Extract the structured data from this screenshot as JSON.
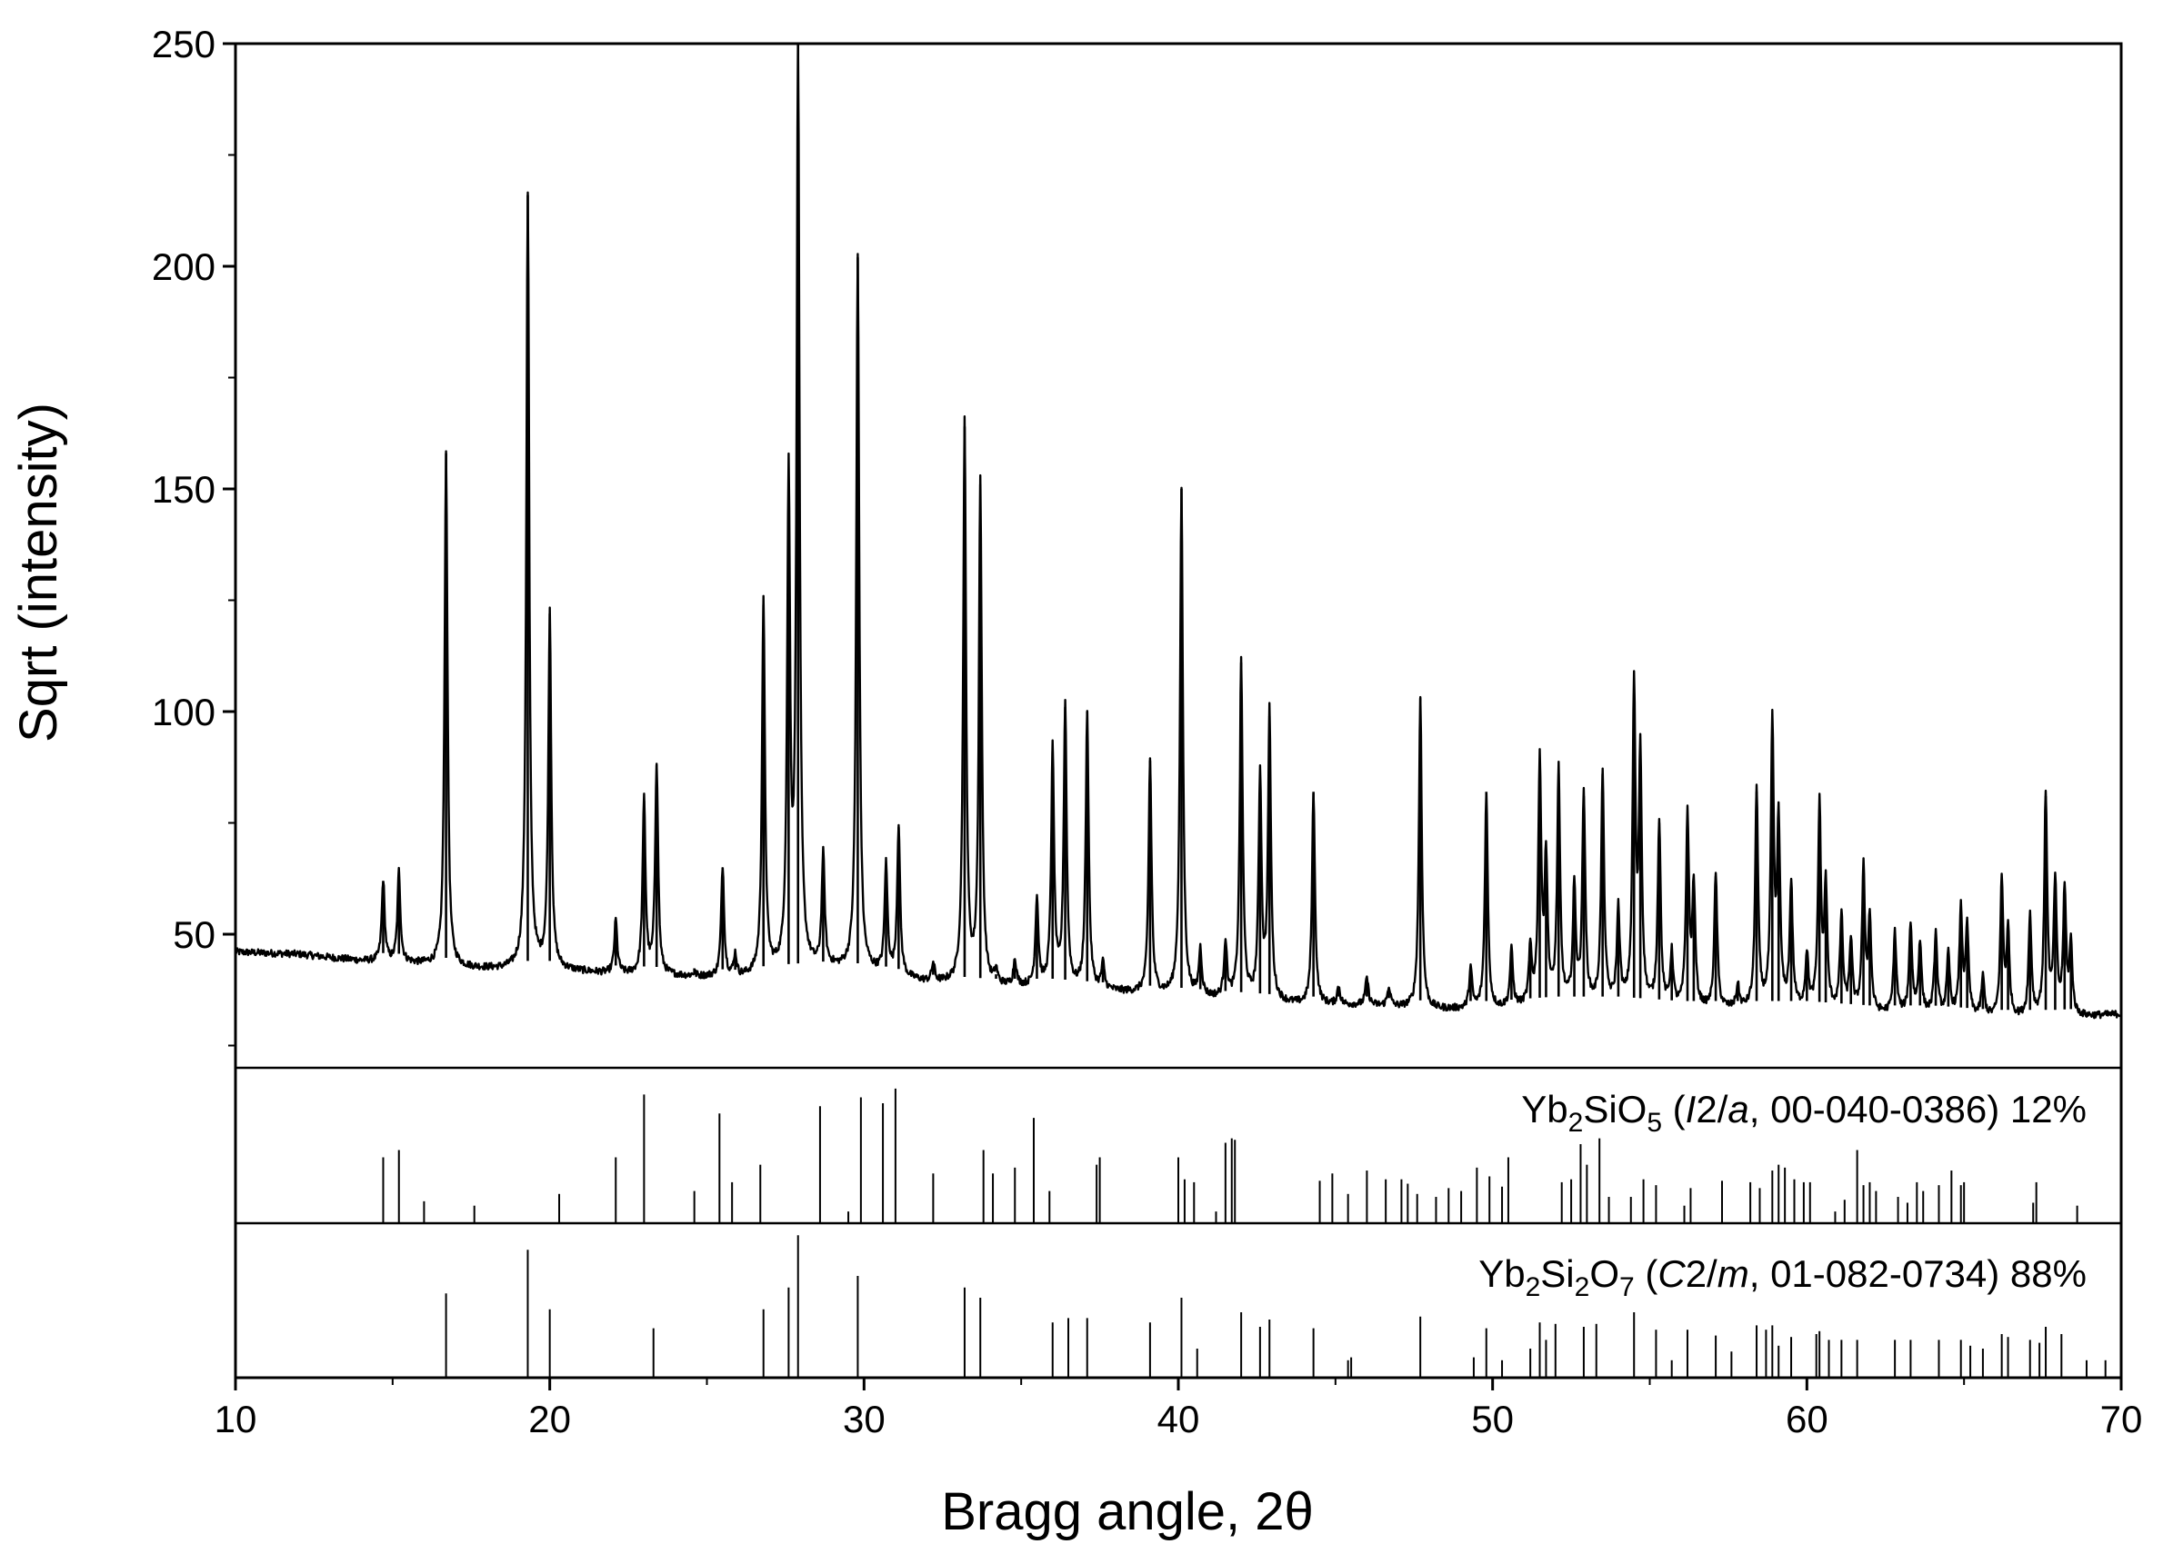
{
  "chart_data": {
    "type": "line",
    "xlabel": "Bragg angle, 2θ",
    "ylabel": "Sqrt (intensity)",
    "xlim": [
      10,
      70
    ],
    "ylim": [
      20,
      250
    ],
    "x_ticks": [
      10,
      20,
      30,
      40,
      50,
      60,
      70
    ],
    "x_tick_labels": [
      "10",
      "20",
      "30",
      "40",
      "50",
      "60",
      "70"
    ],
    "y_ticks": [
      50,
      100,
      150,
      200,
      250
    ],
    "y_tick_labels": [
      "50",
      "100",
      "150",
      "200",
      "250"
    ],
    "grid": false,
    "line_color": "#000000",
    "baseline": [
      [
        10,
        46
      ],
      [
        12,
        45.5
      ],
      [
        14,
        44
      ],
      [
        15.5,
        43.5
      ],
      [
        17,
        42.5
      ],
      [
        18.5,
        42
      ],
      [
        20,
        42
      ],
      [
        22,
        41
      ],
      [
        24,
        40.5
      ],
      [
        26,
        40
      ],
      [
        27,
        41
      ],
      [
        29,
        42
      ],
      [
        30.5,
        41
      ],
      [
        32,
        39
      ],
      [
        34,
        38
      ],
      [
        36,
        38
      ],
      [
        38,
        37
      ],
      [
        40,
        36
      ],
      [
        42,
        35
      ],
      [
        44,
        34
      ],
      [
        46,
        34
      ],
      [
        48,
        33
      ],
      [
        50,
        33
      ],
      [
        52,
        34
      ],
      [
        54,
        34
      ],
      [
        56,
        33
      ],
      [
        58,
        33
      ],
      [
        60,
        33
      ],
      [
        62,
        32
      ],
      [
        64,
        32
      ],
      [
        66,
        31
      ],
      [
        68,
        31
      ],
      [
        70,
        32
      ]
    ],
    "peaks": [
      [
        14.7,
        62
      ],
      [
        15.2,
        64
      ],
      [
        16.7,
        158
      ],
      [
        19.3,
        216
      ],
      [
        20.0,
        122
      ],
      [
        22.1,
        53
      ],
      [
        23.0,
        80
      ],
      [
        23.4,
        88
      ],
      [
        24.6,
        41
      ],
      [
        25.5,
        65
      ],
      [
        25.9,
        45
      ],
      [
        26.8,
        124
      ],
      [
        27.6,
        150
      ],
      [
        27.9,
        250
      ],
      [
        28.7,
        67
      ],
      [
        29.8,
        202
      ],
      [
        30.7,
        65
      ],
      [
        31.1,
        74
      ],
      [
        32.2,
        43
      ],
      [
        33.2,
        164
      ],
      [
        33.7,
        151
      ],
      [
        34.2,
        41
      ],
      [
        34.8,
        44
      ],
      [
        35.5,
        58
      ],
      [
        36.0,
        91
      ],
      [
        36.4,
        101
      ],
      [
        37.1,
        100
      ],
      [
        37.6,
        43
      ],
      [
        39.1,
        89
      ],
      [
        40.1,
        150
      ],
      [
        40.7,
        46
      ],
      [
        41.5,
        48
      ],
      [
        42.0,
        111
      ],
      [
        42.6,
        85
      ],
      [
        42.9,
        99
      ],
      [
        44.3,
        82
      ],
      [
        45.1,
        38
      ],
      [
        46.0,
        40
      ],
      [
        46.7,
        38
      ],
      [
        47.7,
        103
      ],
      [
        49.3,
        42
      ],
      [
        49.8,
        82
      ],
      [
        50.6,
        46
      ],
      [
        51.2,
        46
      ],
      [
        51.5,
        88
      ],
      [
        51.7,
        66
      ],
      [
        52.1,
        86
      ],
      [
        52.6,
        60
      ],
      [
        52.9,
        81
      ],
      [
        53.5,
        86
      ],
      [
        54.0,
        55
      ],
      [
        54.5,
        104
      ],
      [
        54.7,
        89
      ],
      [
        55.3,
        75
      ],
      [
        55.7,
        45
      ],
      [
        56.2,
        76
      ],
      [
        56.4,
        60
      ],
      [
        57.1,
        63
      ],
      [
        57.8,
        38
      ],
      [
        58.4,
        82
      ],
      [
        58.9,
        96
      ],
      [
        59.1,
        74
      ],
      [
        59.5,
        61
      ],
      [
        60.0,
        45
      ],
      [
        60.4,
        78
      ],
      [
        60.6,
        60
      ],
      [
        61.1,
        54
      ],
      [
        61.4,
        48
      ],
      [
        61.8,
        64
      ],
      [
        62.0,
        53
      ],
      [
        62.8,
        50
      ],
      [
        63.3,
        52
      ],
      [
        63.6,
        48
      ],
      [
        64.1,
        50
      ],
      [
        64.5,
        45
      ],
      [
        64.9,
        55
      ],
      [
        65.1,
        51
      ],
      [
        65.6,
        40
      ],
      [
        66.2,
        62
      ],
      [
        66.4,
        50
      ],
      [
        67.1,
        54
      ],
      [
        67.6,
        81
      ],
      [
        67.9,
        61
      ],
      [
        68.2,
        59
      ],
      [
        68.4,
        47
      ]
    ],
    "reference_patterns": [
      {
        "label_parts": [
          {
            "t": "Yb",
            "s": "n"
          },
          {
            "t": "2",
            "s": "sub"
          },
          {
            "t": "SiO",
            "s": "n"
          },
          {
            "t": "5",
            "s": "sub"
          },
          {
            "t": " (",
            "s": "n"
          },
          {
            "t": "I",
            "s": "it"
          },
          {
            "t": "2/",
            "s": "n"
          },
          {
            "t": "a",
            "s": "it"
          },
          {
            "t": ", 00-040-0386) 12%",
            "s": "n"
          }
        ],
        "sticks": [
          [
            14.7,
            45
          ],
          [
            15.2,
            50
          ],
          [
            16.0,
            15
          ],
          [
            17.6,
            12
          ],
          [
            20.3,
            20
          ],
          [
            22.1,
            45
          ],
          [
            23.0,
            88
          ],
          [
            24.6,
            22
          ],
          [
            25.4,
            75
          ],
          [
            25.8,
            28
          ],
          [
            26.7,
            40
          ],
          [
            28.6,
            80
          ],
          [
            29.5,
            8
          ],
          [
            29.9,
            86
          ],
          [
            30.6,
            82
          ],
          [
            31.0,
            92
          ],
          [
            32.2,
            34
          ],
          [
            33.8,
            50
          ],
          [
            34.1,
            34
          ],
          [
            34.8,
            38
          ],
          [
            35.4,
            72
          ],
          [
            35.9,
            22
          ],
          [
            37.4,
            40
          ],
          [
            37.5,
            45
          ],
          [
            40.0,
            45
          ],
          [
            40.2,
            30
          ],
          [
            40.5,
            28
          ],
          [
            41.2,
            8
          ],
          [
            41.5,
            55
          ],
          [
            41.7,
            58
          ],
          [
            41.8,
            57
          ],
          [
            44.5,
            29
          ],
          [
            44.9,
            34
          ],
          [
            45.4,
            20
          ],
          [
            46.0,
            36
          ],
          [
            46.6,
            30
          ],
          [
            47.1,
            30
          ],
          [
            47.3,
            27
          ],
          [
            47.6,
            20
          ],
          [
            48.2,
            18
          ],
          [
            48.6,
            24
          ],
          [
            49.0,
            22
          ],
          [
            49.5,
            38
          ],
          [
            49.9,
            32
          ],
          [
            50.3,
            25
          ],
          [
            50.5,
            45
          ],
          [
            52.2,
            28
          ],
          [
            52.5,
            30
          ],
          [
            52.8,
            54
          ],
          [
            53.0,
            40
          ],
          [
            53.4,
            58
          ],
          [
            53.7,
            18
          ],
          [
            54.4,
            18
          ],
          [
            54.8,
            30
          ],
          [
            55.2,
            26
          ],
          [
            56.1,
            12
          ],
          [
            56.3,
            24
          ],
          [
            57.3,
            29
          ],
          [
            58.2,
            28
          ],
          [
            58.5,
            24
          ],
          [
            58.9,
            36
          ],
          [
            59.1,
            40
          ],
          [
            59.3,
            38
          ],
          [
            59.6,
            30
          ],
          [
            59.9,
            28
          ],
          [
            60.1,
            28
          ],
          [
            60.9,
            8
          ],
          [
            61.2,
            16
          ],
          [
            61.6,
            50
          ],
          [
            61.8,
            26
          ],
          [
            62.0,
            28
          ],
          [
            62.2,
            22
          ],
          [
            62.9,
            18
          ],
          [
            63.2,
            14
          ],
          [
            63.5,
            28
          ],
          [
            63.7,
            22
          ],
          [
            64.2,
            26
          ],
          [
            64.6,
            36
          ],
          [
            64.9,
            26
          ],
          [
            65.0,
            28
          ],
          [
            67.2,
            14
          ],
          [
            67.3,
            28
          ],
          [
            68.6,
            12
          ]
        ]
      },
      {
        "label_parts": [
          {
            "t": "Yb",
            "s": "n"
          },
          {
            "t": "2",
            "s": "sub"
          },
          {
            "t": "Si",
            "s": "n"
          },
          {
            "t": "2",
            "s": "sub"
          },
          {
            "t": "O",
            "s": "n"
          },
          {
            "t": "7",
            "s": "sub"
          },
          {
            "t": " (",
            "s": "n"
          },
          {
            "t": "C",
            "s": "it"
          },
          {
            "t": "2/",
            "s": "n"
          },
          {
            "t": "m",
            "s": "it"
          },
          {
            "t": ", 01-082-0734) 88%",
            "s": "n"
          }
        ],
        "sticks": [
          [
            16.7,
            58
          ],
          [
            19.3,
            88
          ],
          [
            20.0,
            47
          ],
          [
            23.3,
            34
          ],
          [
            26.8,
            47
          ],
          [
            27.6,
            62
          ],
          [
            27.9,
            98
          ],
          [
            29.8,
            70
          ],
          [
            33.2,
            62
          ],
          [
            33.7,
            55
          ],
          [
            36.0,
            38
          ],
          [
            36.5,
            41
          ],
          [
            37.1,
            41
          ],
          [
            39.1,
            38
          ],
          [
            40.1,
            55
          ],
          [
            40.6,
            20
          ],
          [
            42.0,
            45
          ],
          [
            42.6,
            35
          ],
          [
            42.9,
            40
          ],
          [
            44.3,
            34
          ],
          [
            45.4,
            12
          ],
          [
            45.5,
            14
          ],
          [
            47.7,
            42
          ],
          [
            49.4,
            14
          ],
          [
            49.8,
            34
          ],
          [
            50.3,
            12
          ],
          [
            51.2,
            20
          ],
          [
            51.5,
            38
          ],
          [
            51.7,
            26
          ],
          [
            52.0,
            37
          ],
          [
            52.9,
            35
          ],
          [
            53.3,
            37
          ],
          [
            54.5,
            45
          ],
          [
            55.2,
            33
          ],
          [
            55.7,
            12
          ],
          [
            56.2,
            33
          ],
          [
            57.1,
            29
          ],
          [
            57.6,
            18
          ],
          [
            58.4,
            36
          ],
          [
            58.7,
            33
          ],
          [
            58.9,
            36
          ],
          [
            59.1,
            22
          ],
          [
            59.5,
            28
          ],
          [
            60.3,
            30
          ],
          [
            60.4,
            32
          ],
          [
            60.7,
            26
          ],
          [
            61.1,
            26
          ],
          [
            61.6,
            26
          ],
          [
            62.8,
            26
          ],
          [
            63.3,
            26
          ],
          [
            64.2,
            26
          ],
          [
            64.9,
            26
          ],
          [
            65.2,
            22
          ],
          [
            65.6,
            20
          ],
          [
            66.2,
            30
          ],
          [
            66.4,
            28
          ],
          [
            67.1,
            26
          ],
          [
            67.4,
            24
          ],
          [
            67.6,
            35
          ],
          [
            68.1,
            30
          ],
          [
            68.9,
            12
          ],
          [
            69.5,
            12
          ]
        ]
      }
    ]
  }
}
